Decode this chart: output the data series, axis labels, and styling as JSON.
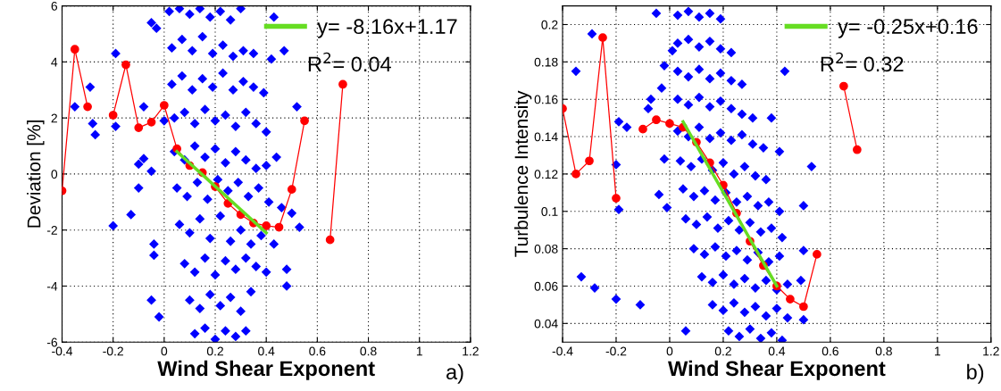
{
  "chart_data": [
    {
      "type": "scatter",
      "xlabel": "Wind Shear Exponent",
      "ylabel": "Deviation [%]",
      "xlim": [
        -0.4,
        1.2
      ],
      "xticks": [
        -0.4,
        -0.2,
        0,
        0.2,
        0.4,
        0.6,
        0.8,
        1,
        1.2
      ],
      "ylim": [
        -6,
        6
      ],
      "yticks": [
        -6,
        -4,
        -2,
        0,
        2,
        4,
        6
      ],
      "grid": true,
      "legend": "top right",
      "annotations": [
        "R$^{2}$= 0.04",
        "a)"
      ],
      "series": [
        {
          "color": "#0000ff",
          "marker": "diamond",
          "x": [
            0.02,
            0.06,
            0.1,
            0.14,
            0.18,
            0.22,
            0.26,
            0.3,
            0.03,
            0.07,
            0.11,
            0.15,
            0.19,
            0.23,
            0.27,
            0.31,
            0.35,
            0.03,
            0.07,
            0.11,
            0.15,
            0.19,
            0.23,
            0.27,
            0.31,
            0.35,
            0.39,
            0.04,
            0.08,
            0.12,
            0.16,
            0.2,
            0.24,
            0.28,
            0.32,
            0.36,
            0.4,
            0.04,
            0.08,
            0.12,
            0.16,
            0.2,
            0.24,
            0.28,
            0.32,
            0.36,
            0.4,
            0.44,
            0.05,
            0.09,
            0.13,
            0.17,
            0.21,
            0.25,
            0.29,
            0.33,
            0.37,
            0.41,
            0.46,
            0.06,
            0.1,
            0.14,
            0.18,
            0.22,
            0.26,
            0.3,
            0.34,
            0.38,
            0.43,
            0.08,
            0.12,
            0.16,
            0.2,
            0.24,
            0.28,
            0.32,
            0.36,
            0.4,
            0.1,
            0.14,
            0.18,
            0.22,
            0.26,
            0.3,
            0.34,
            0.12,
            0.16,
            0.2,
            0.24,
            0.28,
            0.32,
            -0.35,
            -0.29,
            -0.28,
            -0.27,
            -0.2,
            -0.19,
            -0.19,
            -0.1,
            -0.08,
            -0.08,
            -0.1,
            -0.13,
            -0.05,
            -0.05,
            -0.05,
            -0.04,
            -0.04,
            -0.02,
            -0.03,
            0.0,
            0.43,
            0.47,
            0.42,
            0.52,
            0.53,
            0.48,
            0.48,
            0.5
          ],
          "values": [
            5.8,
            5.9,
            5.7,
            5.9,
            5.6,
            5.8,
            5.5,
            5.9,
            4.5,
            4.8,
            4.4,
            4.9,
            4.3,
            4.6,
            4.2,
            4.4,
            4.3,
            3.2,
            3.5,
            3.0,
            3.4,
            3.1,
            3.6,
            3.0,
            3.3,
            3.1,
            2.9,
            2.0,
            2.2,
            1.8,
            2.3,
            1.9,
            2.1,
            1.7,
            2.2,
            1.8,
            1.5,
            0.8,
            0.5,
            1.0,
            0.6,
            0.9,
            0.4,
            0.8,
            0.5,
            0.2,
            0.3,
            0.6,
            -0.5,
            -0.8,
            -0.3,
            -0.9,
            -0.2,
            -0.6,
            -0.3,
            -0.8,
            -0.5,
            -1.0,
            -1.2,
            -1.8,
            -2.1,
            -1.6,
            -2.3,
            -1.5,
            -2.4,
            -2.0,
            -2.5,
            -2.2,
            -2.5,
            -3.2,
            -3.5,
            -3.0,
            -3.6,
            -3.1,
            -3.4,
            -3.0,
            -3.3,
            -3.5,
            -4.5,
            -4.8,
            -4.3,
            -4.7,
            -4.4,
            -4.9,
            -4.2,
            -5.7,
            -5.5,
            -5.9,
            -5.6,
            -5.8,
            -5.6,
            2.4,
            3.1,
            1.8,
            1.4,
            -1.85,
            4.3,
            1.7,
            0.35,
            2.4,
            0.55,
            -0.5,
            -1.45,
            5.4,
            0.1,
            -4.5,
            -2.5,
            -2.9,
            -5.1,
            5.2,
            1.9,
            5.6,
            4.4,
            4.1,
            2.4,
            -1.9,
            -3.4,
            -4.0,
            -1.4
          ]
        },
        {
          "type": "line",
          "color": "#ff0000",
          "marker": "circle",
          "x": [
            -0.4,
            -0.35,
            -0.3,
            -0.25,
            -0.2,
            -0.15,
            -0.1,
            -0.05,
            0,
            0.05,
            0.1,
            0.15,
            0.2,
            0.25,
            0.3,
            0.35,
            0.4,
            0.45,
            0.5,
            0.55,
            0.6,
            0.65,
            0.7
          ],
          "values": [
            -0.6,
            4.45,
            2.4,
            null,
            2.1,
            3.9,
            1.65,
            1.85,
            2.45,
            0.9,
            0.3,
            0.05,
            -0.45,
            -1.05,
            -1.45,
            -1.75,
            -1.85,
            -1.9,
            -0.55,
            1.9,
            null,
            -2.35,
            3.2
          ]
        },
        {
          "type": "line",
          "name": "y= -8.16x+1.17",
          "color": "#66dd22",
          "marker": "none",
          "x": [
            0.05,
            0.4
          ],
          "values": [
            0.8,
            -2.1
          ]
        }
      ]
    },
    {
      "type": "scatter",
      "xlabel": "Wind Shear Exponent",
      "ylabel": "Turbulence Intensity",
      "xlim": [
        -0.4,
        1.2
      ],
      "xticks": [
        -0.4,
        -0.2,
        0,
        0.2,
        0.4,
        0.6,
        0.8,
        1,
        1.2
      ],
      "ylim": [
        0.03,
        0.21
      ],
      "yticks": [
        0.04,
        0.06,
        0.08,
        0.1,
        0.12,
        0.14,
        0.16,
        0.18,
        0.2
      ],
      "grid": true,
      "legend": "top right",
      "annotations": [
        "R$^{2}$= 0.32",
        "b)"
      ],
      "series": [
        {
          "color": "#0000ff",
          "marker": "diamond",
          "x": [
            0.03,
            0.07,
            0.11,
            0.15,
            0.19,
            0.03,
            0.07,
            0.11,
            0.15,
            0.19,
            0.23,
            0.03,
            0.07,
            0.11,
            0.15,
            0.19,
            0.23,
            0.27,
            0.03,
            0.07,
            0.11,
            0.15,
            0.19,
            0.23,
            0.27,
            0.31,
            0.03,
            0.07,
            0.11,
            0.15,
            0.19,
            0.23,
            0.27,
            0.31,
            0.35,
            0.04,
            0.08,
            0.12,
            0.16,
            0.2,
            0.24,
            0.28,
            0.32,
            0.36,
            0.05,
            0.09,
            0.13,
            0.17,
            0.21,
            0.25,
            0.29,
            0.33,
            0.37,
            0.41,
            0.06,
            0.1,
            0.14,
            0.18,
            0.22,
            0.26,
            0.3,
            0.34,
            0.38,
            0.42,
            0.09,
            0.13,
            0.17,
            0.21,
            0.25,
            0.29,
            0.33,
            0.37,
            0.41,
            0.12,
            0.16,
            0.2,
            0.24,
            0.28,
            0.32,
            0.36,
            0.4,
            0.44,
            0.16,
            0.2,
            0.24,
            0.28,
            0.32,
            0.36,
            0.4,
            0.44,
            0.22,
            0.26,
            0.3,
            0.34,
            0.38,
            0.42,
            -0.35,
            -0.29,
            -0.33,
            -0.28,
            -0.2,
            -0.11,
            -0.19,
            -0.19,
            -0.16,
            -0.2,
            -0.04,
            -0.01,
            -0.05,
            -0.03,
            -0.02,
            0.01,
            -0.02,
            0.5,
            0.53,
            0.5,
            0.49,
            0.5,
            0.43,
            0.38,
            0.06,
            0.41,
            -0.07,
            -0.08
          ],
          "values": [
            0.205,
            0.207,
            0.204,
            0.206,
            0.203,
            0.19,
            0.192,
            0.188,
            0.191,
            0.187,
            0.185,
            0.175,
            0.172,
            0.176,
            0.171,
            0.174,
            0.17,
            0.168,
            0.16,
            0.157,
            0.161,
            0.156,
            0.159,
            0.155,
            0.152,
            0.15,
            0.143,
            0.14,
            0.145,
            0.139,
            0.142,
            0.138,
            0.141,
            0.136,
            0.134,
            0.127,
            0.124,
            0.128,
            0.122,
            0.126,
            0.12,
            0.124,
            0.119,
            0.117,
            0.112,
            0.108,
            0.111,
            0.106,
            0.11,
            0.105,
            0.108,
            0.103,
            0.105,
            0.1,
            0.096,
            0.093,
            0.097,
            0.091,
            0.095,
            0.09,
            0.094,
            0.089,
            0.091,
            0.086,
            0.08,
            0.077,
            0.081,
            0.076,
            0.079,
            0.074,
            0.078,
            0.073,
            0.076,
            0.065,
            0.062,
            0.066,
            0.061,
            0.064,
            0.059,
            0.063,
            0.058,
            0.061,
            0.05,
            0.047,
            0.051,
            0.046,
            0.049,
            0.044,
            0.048,
            0.043,
            0.036,
            0.033,
            0.037,
            0.032,
            0.035,
            0.031,
            0.175,
            0.195,
            0.065,
            0.059,
            0.053,
            0.05,
            0.101,
            0.148,
            0.145,
            0.125,
            0.109,
            0.102,
            0.206,
            0.166,
            0.178,
            0.186,
            0.128,
            0.103,
            0.124,
            0.079,
            0.063,
            0.042,
            0.175,
            0.15,
            0.036,
            0.132,
            0.16,
            0.155
          ]
        },
        {
          "type": "line",
          "color": "#ff0000",
          "marker": "circle",
          "x": [
            -0.4,
            -0.35,
            -0.3,
            -0.25,
            -0.2,
            -0.15,
            -0.1,
            -0.05,
            0,
            0.05,
            0.1,
            0.15,
            0.2,
            0.25,
            0.3,
            0.35,
            0.4,
            0.45,
            0.5,
            0.55,
            0.6,
            0.65,
            0.7
          ],
          "values": [
            0.155,
            0.12,
            0.127,
            0.193,
            0.107,
            null,
            0.144,
            0.149,
            0.147,
            0.145,
            0.137,
            0.126,
            0.114,
            0.099,
            0.084,
            0.071,
            0.06,
            0.053,
            0.049,
            0.077,
            null,
            0.167,
            0.133
          ]
        },
        {
          "type": "line",
          "name": "y= -0.25x+0.16",
          "color": "#66dd22",
          "marker": "none",
          "x": [
            0.05,
            0.4
          ],
          "values": [
            0.148,
            0.06
          ]
        }
      ]
    }
  ]
}
